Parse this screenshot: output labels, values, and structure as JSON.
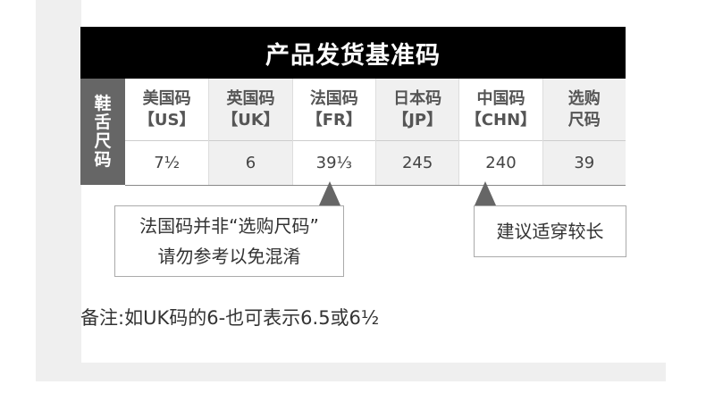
{
  "title": "产品发货基准码",
  "side_label": [
    "鞋",
    "舌",
    "尺",
    "码"
  ],
  "columns": [
    {
      "line1": "美国码",
      "line2": "【US】",
      "value": "7½"
    },
    {
      "line1": "英国码",
      "line2": "【UK】",
      "value": "6"
    },
    {
      "line1": "法国码",
      "line2": "【FR】",
      "value": "39⅓"
    },
    {
      "line1": "日本码",
      "line2": "【JP】",
      "value": "245"
    },
    {
      "line1": "中国码",
      "line2": "【CHN】",
      "value": "240"
    },
    {
      "line1": "选购",
      "line2": "尺码",
      "value": "39"
    }
  ],
  "callouts": {
    "fr": [
      "法国码并非“选购尺码”",
      "请勿参考以免混淆"
    ],
    "chn": "建议适穿较长"
  },
  "note": "备注:如UK码的6-也可表示6.5或6½"
}
